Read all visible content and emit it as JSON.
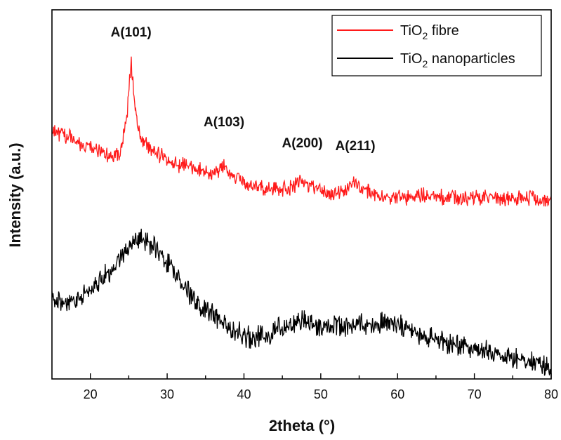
{
  "chart_data": {
    "type": "line",
    "title": "",
    "xlabel": "2theta (°)",
    "ylabel": "Intensity (a.u.)",
    "xlim": [
      15,
      80
    ],
    "ylim": [
      0,
      100
    ],
    "y_ticks_shown": false,
    "x_ticks": [
      20,
      30,
      40,
      50,
      60,
      70,
      80
    ],
    "x_tick_labels": [
      "20",
      "30",
      "40",
      "50",
      "60",
      "70",
      "80"
    ],
    "legend_position": "top-right",
    "grid": false,
    "series": [
      {
        "name": "TiO2 fibre",
        "legend_label": {
          "base": "TiO",
          "sub": "2",
          "rest": " fibre"
        },
        "color": "#ff1a1a",
        "x": [
          15,
          18,
          21,
          23,
          24,
          24.8,
          25.3,
          25.8,
          26.5,
          28,
          30,
          33,
          35,
          36.5,
          37.4,
          38.3,
          40,
          42,
          44,
          46,
          47.3,
          48,
          49.5,
          51,
          53,
          54.5,
          55.5,
          57,
          60,
          63,
          66,
          70,
          75,
          80
        ],
        "values": [
          67.5,
          64.5,
          62,
          60,
          62,
          72,
          86.5,
          73,
          65,
          62,
          59,
          57.5,
          56,
          55.5,
          58,
          55,
          53.5,
          51.5,
          51.5,
          51.5,
          54,
          53,
          51.5,
          50.5,
          50.5,
          53.5,
          51,
          50,
          49,
          49.5,
          49,
          49,
          49,
          49
        ]
      },
      {
        "name": "TiO2 nanoparticles",
        "legend_label": {
          "base": "TiO",
          "sub": "2",
          "rest": " nanoparticles"
        },
        "color": "#000000",
        "x": [
          15,
          17,
          19,
          21,
          23,
          24.5,
          26,
          27.5,
          29,
          31,
          33,
          35,
          37,
          39,
          41,
          43,
          45,
          47,
          48,
          49,
          51,
          53,
          55,
          57,
          59,
          61,
          63,
          65,
          67,
          70,
          73,
          76,
          80
        ],
        "values": [
          22,
          20,
          23,
          26,
          30,
          35,
          38,
          37,
          34,
          29,
          23,
          19,
          15.5,
          12.5,
          11,
          12,
          14,
          15,
          16,
          14.5,
          14,
          14,
          14.5,
          15,
          15.5,
          13.5,
          12,
          10.5,
          9,
          8,
          6.5,
          5,
          3.5
        ]
      }
    ],
    "annotations": [
      {
        "text": "A(101)",
        "x": 25.3
      },
      {
        "text": "A(103)",
        "x": 37.4
      },
      {
        "text": "A(200)",
        "x": 47.6
      },
      {
        "text": "A(211)",
        "x": 54.5
      }
    ]
  }
}
